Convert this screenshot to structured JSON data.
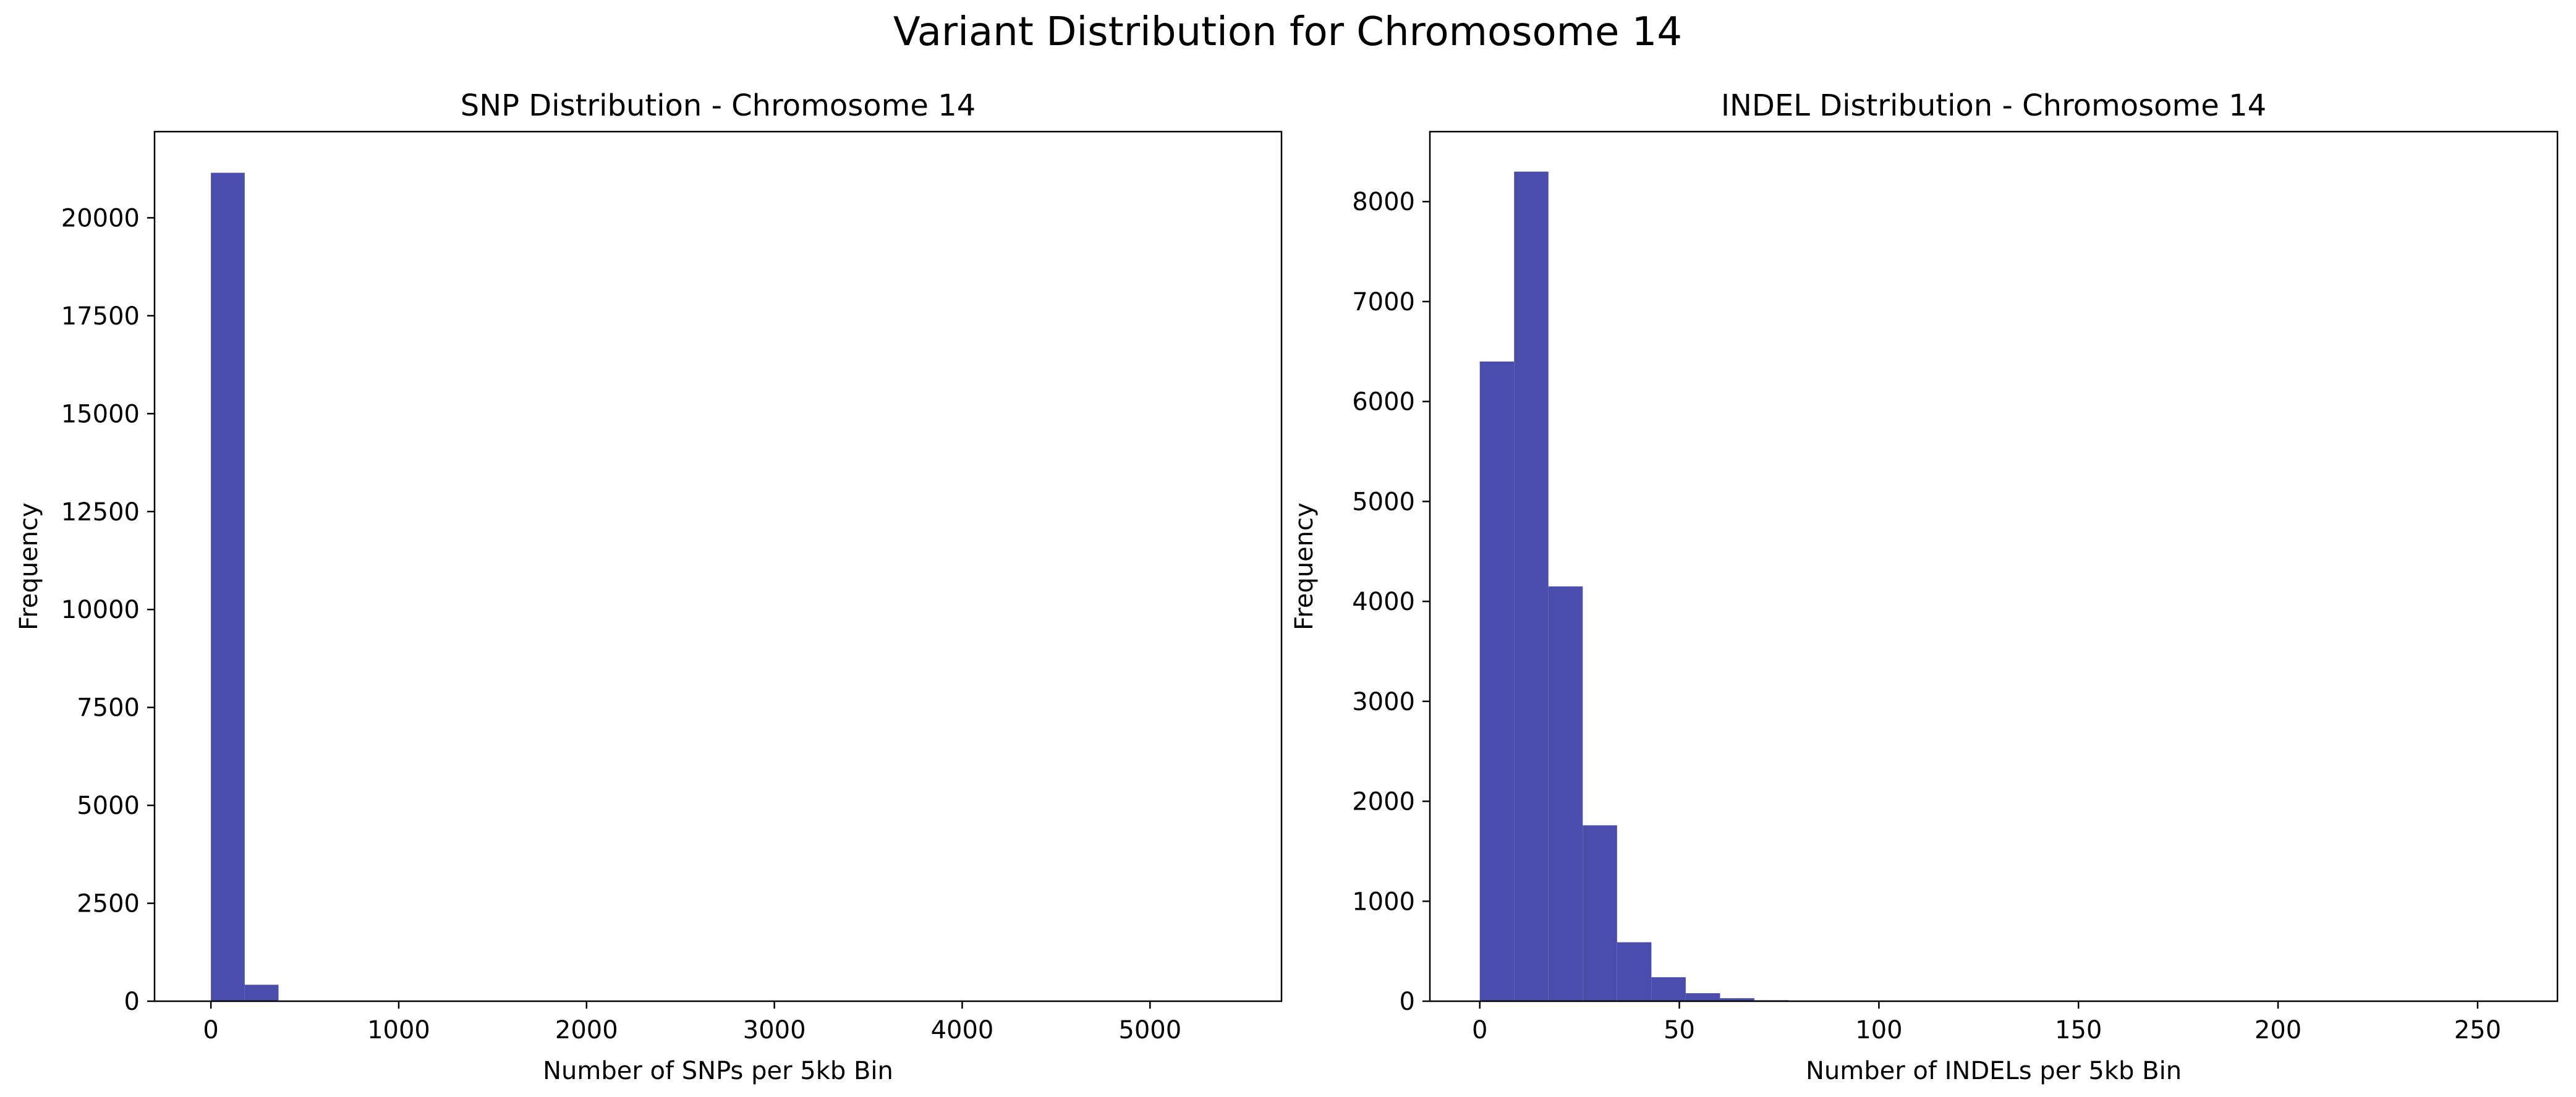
{
  "figure": {
    "title": "Variant Distribution for Chromosome 14"
  },
  "colors": {
    "bar": "#4b4dad",
    "axis": "#000000",
    "background": "#ffffff"
  },
  "chart_data": [
    {
      "type": "bar",
      "title": "SNP Distribution - Chromosome 14",
      "xlabel": "Number of SNPs per 5kb Bin",
      "ylabel": "Frequency",
      "xlim": [
        -300,
        5700
      ],
      "ylim": [
        0,
        22200
      ],
      "xticks": [
        0,
        1000,
        2000,
        3000,
        4000,
        5000
      ],
      "yticks": [
        0,
        2500,
        5000,
        7500,
        10000,
        12500,
        15000,
        17500,
        20000
      ],
      "bin_width": 180,
      "bins": [
        {
          "x0": 0,
          "x1": 180,
          "count": 21150
        },
        {
          "x0": 180,
          "x1": 360,
          "count": 420
        }
      ],
      "grid": false,
      "legend": "none"
    },
    {
      "type": "bar",
      "title": "INDEL Distribution - Chromosome 14",
      "xlabel": "Number of INDELs per 5kb Bin",
      "ylabel": "Frequency",
      "xlim": [
        -12.5,
        270
      ],
      "ylim": [
        0,
        8700
      ],
      "xticks": [
        0,
        50,
        100,
        150,
        200,
        250
      ],
      "yticks": [
        0,
        1000,
        2000,
        3000,
        4000,
        5000,
        6000,
        7000,
        8000
      ],
      "bin_width": 8.6,
      "bins": [
        {
          "x0": 0,
          "x1": 8.6,
          "count": 6400
        },
        {
          "x0": 8.6,
          "x1": 17.2,
          "count": 8300
        },
        {
          "x0": 17.2,
          "x1": 25.8,
          "count": 4150
        },
        {
          "x0": 25.8,
          "x1": 34.4,
          "count": 1760
        },
        {
          "x0": 34.4,
          "x1": 43.0,
          "count": 590
        },
        {
          "x0": 43.0,
          "x1": 51.6,
          "count": 240
        },
        {
          "x0": 51.6,
          "x1": 60.2,
          "count": 80
        },
        {
          "x0": 60.2,
          "x1": 68.8,
          "count": 30
        },
        {
          "x0": 68.8,
          "x1": 77.4,
          "count": 10
        },
        {
          "x0": 77.4,
          "x1": 86.0,
          "count": 4
        }
      ],
      "grid": false,
      "legend": "none"
    }
  ]
}
